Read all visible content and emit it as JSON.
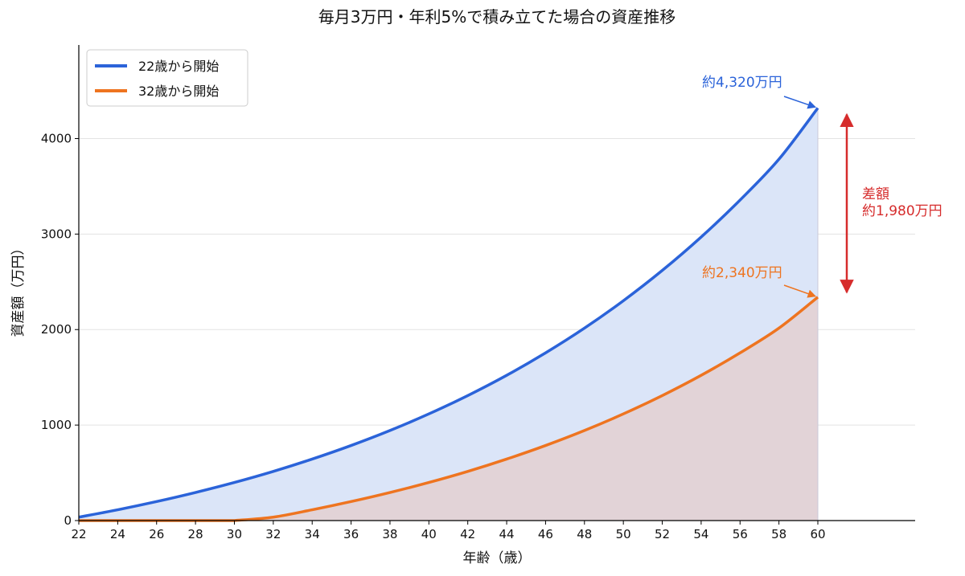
{
  "chart_data": {
    "type": "area",
    "title": "毎月3万円・年利5%で積み立てた場合の資産推移",
    "xlabel": "年齢（歳）",
    "ylabel": "資産額（万円）",
    "xlim": [
      22,
      60
    ],
    "ylim": [
      0,
      4980
    ],
    "x_ticks": [
      22,
      24,
      26,
      28,
      30,
      32,
      34,
      36,
      38,
      40,
      42,
      44,
      46,
      48,
      50,
      52,
      54,
      56,
      58,
      60
    ],
    "y_ticks": [
      0,
      1000,
      2000,
      3000,
      4000
    ],
    "grid": "horizontal",
    "legend_position": "top-left",
    "x": [
      22,
      24,
      26,
      28,
      30,
      32,
      34,
      36,
      38,
      40,
      42,
      44,
      46,
      48,
      50,
      52,
      54,
      56,
      58,
      60
    ],
    "series": [
      {
        "name": "22歳から開始",
        "color": "#2b63d9",
        "fill": "#dbe5f8",
        "values": [
          36,
          113,
          199,
          294,
          399,
          515,
          644,
          786,
          943,
          1117,
          1309,
          1521,
          1756,
          2015,
          2302,
          2619,
          2969,
          3356,
          3784,
          4320
        ]
      },
      {
        "name": "32歳から開始",
        "color": "#ee7420",
        "fill": "#e2d3d7",
        "values": [
          0,
          0,
          0,
          0,
          0,
          36,
          113,
          199,
          294,
          399,
          515,
          644,
          786,
          943,
          1117,
          1309,
          1521,
          1756,
          2015,
          2340
        ]
      }
    ],
    "annotations": {
      "blue_end": {
        "text": "約4,320万円",
        "color": "#2b63d9",
        "value": 4320
      },
      "orange_end": {
        "text": "約2,340万円",
        "color": "#ee7420",
        "value": 2340
      },
      "difference": {
        "line1": "差額",
        "line2": "約1,980万円",
        "color": "#d62c2c"
      }
    }
  }
}
